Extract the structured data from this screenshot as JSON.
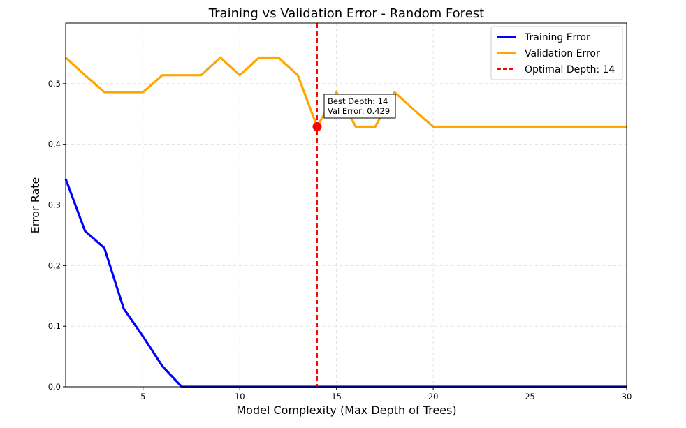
{
  "chart_data": {
    "type": "line",
    "title": "Training vs Validation Error - Random Forest",
    "xlabel": "Model Complexity (Max Depth of Trees)",
    "ylabel": "Error Rate",
    "xlim": [
      1,
      30
    ],
    "ylim": [
      0,
      0.6
    ],
    "x_ticks": [
      5,
      10,
      15,
      20,
      25,
      30
    ],
    "y_ticks": [
      0.0,
      0.1,
      0.2,
      0.3,
      0.4,
      0.5
    ],
    "grid": true,
    "legend_position": "top-right",
    "series": [
      {
        "name": "Training Error",
        "color": "#0000ff",
        "x": [
          1,
          2,
          3,
          4,
          5,
          6,
          7,
          8,
          9,
          10,
          11,
          12,
          13,
          14,
          15,
          16,
          17,
          18,
          19,
          20,
          21,
          22,
          23,
          24,
          25,
          26,
          27,
          28,
          29,
          30
        ],
        "y": [
          0.343,
          0.257,
          0.229,
          0.129,
          0.083,
          0.034,
          0,
          0,
          0,
          0,
          0,
          0,
          0,
          0,
          0,
          0,
          0,
          0,
          0,
          0,
          0,
          0,
          0,
          0,
          0,
          0,
          0,
          0,
          0,
          0
        ]
      },
      {
        "name": "Validation Error",
        "color": "#ffa500",
        "x": [
          1,
          2,
          3,
          4,
          5,
          6,
          7,
          8,
          9,
          10,
          11,
          12,
          13,
          14,
          15,
          16,
          17,
          18,
          19,
          20,
          21,
          22,
          23,
          24,
          25,
          26,
          27,
          28,
          29,
          30
        ],
        "y": [
          0.543,
          0.514,
          0.486,
          0.486,
          0.486,
          0.514,
          0.514,
          0.514,
          0.543,
          0.514,
          0.543,
          0.543,
          0.514,
          0.429,
          0.486,
          0.429,
          0.429,
          0.486,
          0.457,
          0.429,
          0.429,
          0.429,
          0.429,
          0.429,
          0.429,
          0.429,
          0.429,
          0.429,
          0.429,
          0.429
        ]
      }
    ],
    "vline": {
      "name": "Optimal Depth: 14",
      "x": 14,
      "color": "#ff0000",
      "style": "dashed"
    },
    "marker": {
      "x": 14,
      "y": 0.429,
      "color": "#ff0000"
    },
    "annotation": {
      "line1": "Best Depth: 14",
      "line2": "Val Error: 0.429"
    }
  }
}
